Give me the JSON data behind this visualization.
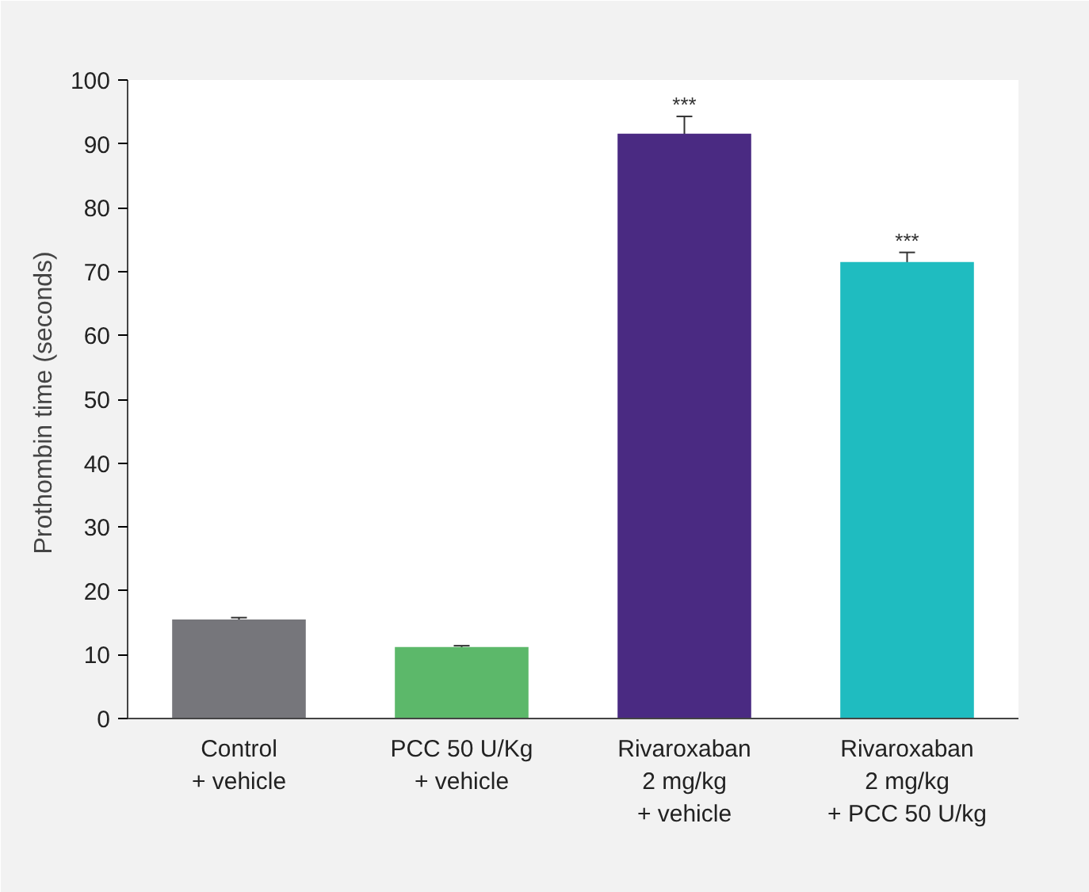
{
  "chart_data": {
    "type": "bar",
    "ylabel": "Prothombin time  (seconds)",
    "categories": [
      "Control\n+ vehicle",
      "PCC 50 U/Kg\n+ vehicle",
      "Rivaroxaban\n2 mg/kg\n+ vehicle",
      "Rivaroxaban\n2 mg/kg\n+ PCC 50 U/kg"
    ],
    "values": [
      15.5,
      11.2,
      91.6,
      71.5
    ],
    "errors": [
      0.3,
      0.2,
      2.7,
      1.5
    ],
    "colors": [
      "#76767b",
      "#5cb86a",
      "#4a2a82",
      "#1fbcc0"
    ],
    "ylim": [
      0,
      100
    ],
    "yticks": [
      0,
      10,
      20,
      30,
      40,
      50,
      60,
      70,
      80,
      90,
      100
    ],
    "grid": false,
    "annotations": [
      {
        "text": "***",
        "x": "Rivaroxaban\n2 mg/kg\n+ vehicle",
        "y": 94.3
      },
      {
        "text": "***",
        "x": "Rivaroxaban\n2 mg/kg\n+ PCC 50 U/kg",
        "y": 73
      }
    ]
  }
}
